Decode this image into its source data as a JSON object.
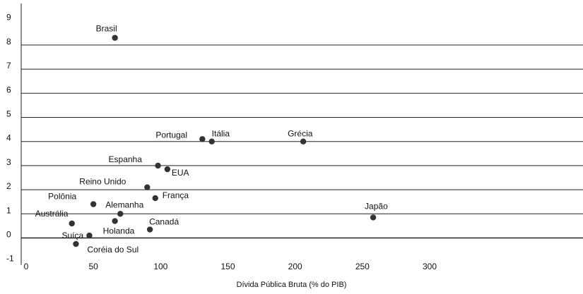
{
  "chart_data": {
    "type": "scatter",
    "title": "",
    "xlabel": "Dívida Pública Bruta (% do PIB)",
    "ylabel": "",
    "xlim": [
      0,
      300
    ],
    "ylim": [
      -1,
      9
    ],
    "x_ticks": [
      0,
      50,
      100,
      150,
      200,
      250,
      300
    ],
    "y_ticks": [
      -1,
      0,
      1,
      2,
      3,
      4,
      5,
      6,
      7,
      8,
      9
    ],
    "grid": "horizontal",
    "legend": "none",
    "colors": {
      "point": "#333333",
      "grid": "#222222",
      "text": "#111111"
    },
    "points": [
      {
        "label": "Brasil",
        "x": 66,
        "y": 8.3
      },
      {
        "label": "Portugal",
        "x": 131,
        "y": 4.1
      },
      {
        "label": "Itália",
        "x": 138,
        "y": 4.0
      },
      {
        "label": "Grécia",
        "x": 206,
        "y": 4.0
      },
      {
        "label": "Espanha",
        "x": 98,
        "y": 3.0
      },
      {
        "label": "EUA",
        "x": 105,
        "y": 2.85
      },
      {
        "label": "Reino Unido",
        "x": 90,
        "y": 2.1
      },
      {
        "label": "França",
        "x": 96,
        "y": 1.65
      },
      {
        "label": "Polônia",
        "x": 50,
        "y": 1.4
      },
      {
        "label": "Alemanha",
        "x": 70,
        "y": 1.0
      },
      {
        "label": "Holanda",
        "x": 66,
        "y": 0.7
      },
      {
        "label": "Austrália",
        "x": 34,
        "y": 0.6
      },
      {
        "label": "Canadá",
        "x": 92,
        "y": 0.35
      },
      {
        "label": "Japão",
        "x": 258,
        "y": 0.85
      },
      {
        "label": "Suíça",
        "x": 47,
        "y": 0.1
      },
      {
        "label": "Coréia do Sul",
        "x": 37,
        "y": -0.25
      }
    ]
  }
}
